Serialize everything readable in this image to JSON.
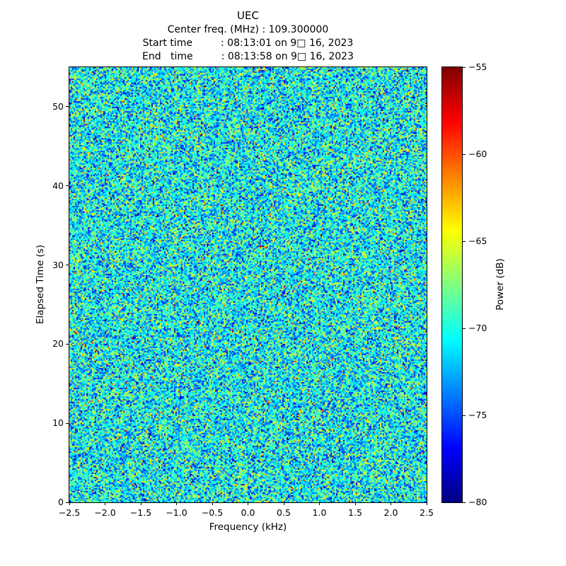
{
  "header": {
    "title": "UEC",
    "line_center_freq": "Center freq. (MHz) : 109.300000",
    "line_start_time": "Start time         : 08:13:01 on 9□ 16, 2023",
    "line_end_time": "End   time         : 08:13:58 on 9□ 16, 2023"
  },
  "chart_data": {
    "type": "heatmap",
    "title": "UEC",
    "xlabel": "Frequency (kHz)",
    "ylabel": "Elapsed Time (s)",
    "xlim": [
      -2.5,
      2.5
    ],
    "ylim": [
      0,
      55
    ],
    "x_ticks": [
      -2.5,
      -2.0,
      -1.5,
      -1.0,
      -0.5,
      0.0,
      0.5,
      1.0,
      1.5,
      2.0,
      2.5
    ],
    "x_tick_labels": [
      "−2.5",
      "−2.0",
      "−1.5",
      "−1.0",
      "−0.5",
      "0.0",
      "0.5",
      "1.0",
      "1.5",
      "2.0",
      "2.5"
    ],
    "y_ticks": [
      0,
      10,
      20,
      30,
      40,
      50
    ],
    "y_tick_labels": [
      "0",
      "10",
      "20",
      "30",
      "40",
      "50"
    ],
    "grid": false,
    "colorbar": {
      "label": "Power (dB)",
      "vmin": -80,
      "vmax": -55,
      "ticks": [
        -55,
        -60,
        -65,
        -70,
        -75,
        -80
      ],
      "tick_labels": [
        "−55",
        "−60",
        "−65",
        "−70",
        "−75",
        "−80"
      ],
      "colormap": "jet",
      "gradient_stops": [
        {
          "pos": 0.0,
          "color": "#800000"
        },
        {
          "pos": 0.125,
          "color": "#ff0000"
        },
        {
          "pos": 0.25,
          "color": "#ff8000"
        },
        {
          "pos": 0.375,
          "color": "#ffff00"
        },
        {
          "pos": 0.5,
          "color": "#80ff80"
        },
        {
          "pos": 0.625,
          "color": "#00ffff"
        },
        {
          "pos": 0.75,
          "color": "#0080ff"
        },
        {
          "pos": 0.875,
          "color": "#0000ff"
        },
        {
          "pos": 1.0,
          "color": "#000080"
        }
      ]
    },
    "values_summary": {
      "description": "Spectrogram of broadband noise; no coherent signal visible. Power values are random noise centered near -70 dB across the full -2.5 to 2.5 kHz band and 0-55 s span.",
      "mean_db": -70.5,
      "std_db": 3.6,
      "min_db": -80,
      "max_db": -55
    }
  }
}
